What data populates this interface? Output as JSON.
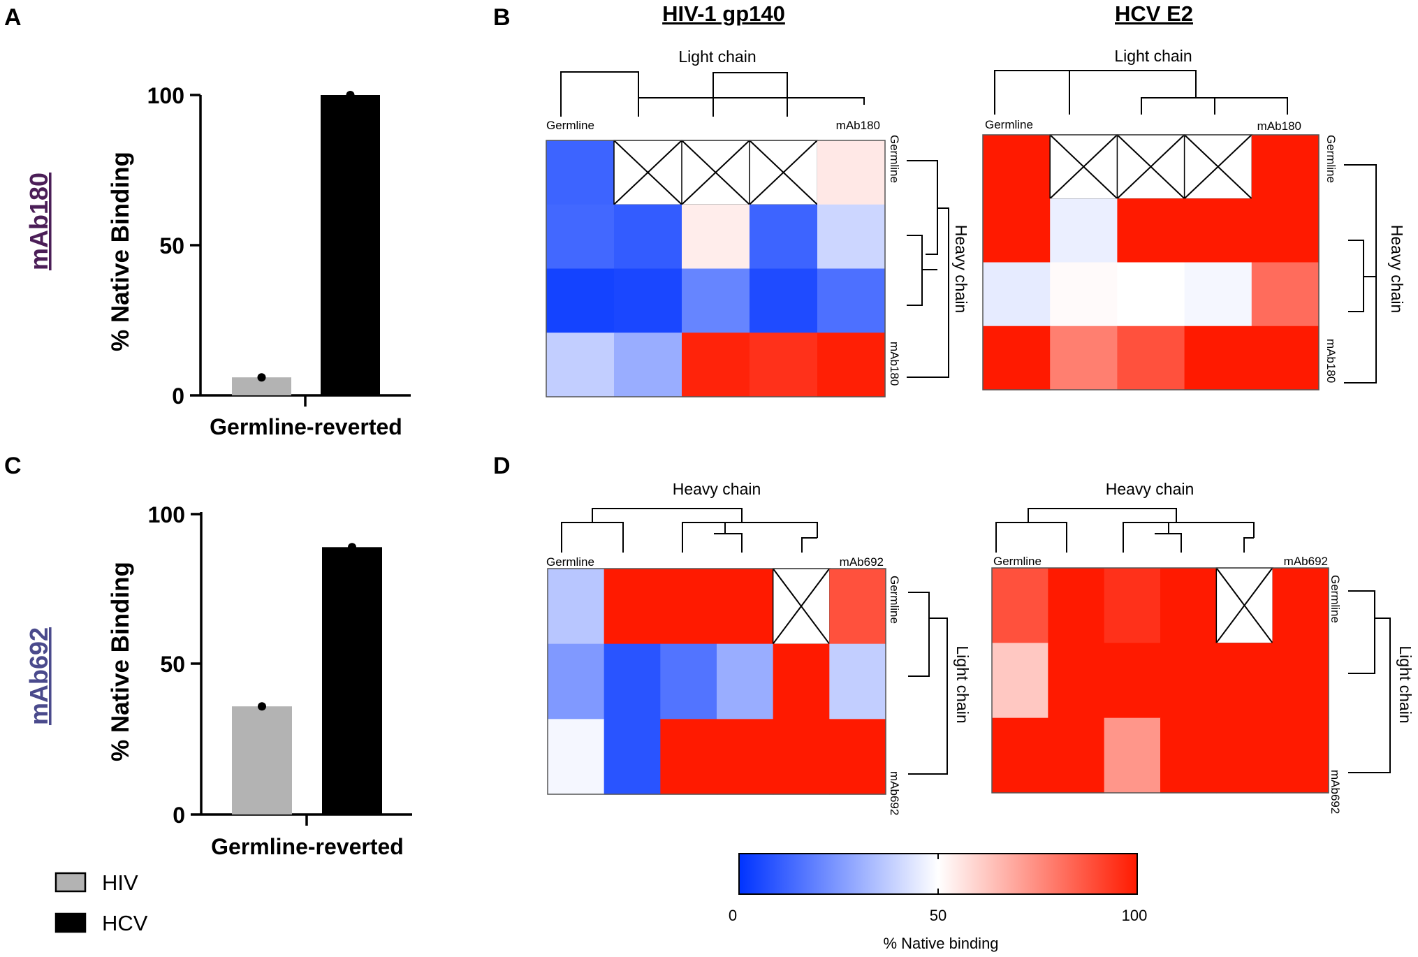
{
  "panels": {
    "A": "A",
    "B": "B",
    "C": "C",
    "D": "D"
  },
  "colors": {
    "hiv": "#b3b3b3",
    "hcv": "#000000",
    "low": "#0033ff",
    "mid": "#ffffff",
    "high": "#ff1a00",
    "mAb180_label": "#4b1e57",
    "mAb692_label": "#4a4a8c"
  },
  "chart_data": [
    {
      "id": "A",
      "type": "bar",
      "side_label": "mAb180",
      "ylabel": "% Native Binding",
      "xlabel": "Germline-reverted",
      "ylim": [
        0,
        100
      ],
      "yticks": [
        "0",
        "50",
        "100"
      ],
      "series": [
        {
          "name": "HIV",
          "values": [
            6
          ]
        },
        {
          "name": "HCV",
          "values": [
            100
          ]
        }
      ]
    },
    {
      "id": "C",
      "type": "bar",
      "side_label": "mAb692",
      "ylabel": "% Native Binding",
      "xlabel": "Germline-reverted",
      "ylim": [
        0,
        100
      ],
      "yticks": [
        "0",
        "50",
        "100"
      ],
      "series": [
        {
          "name": "HIV",
          "values": [
            36
          ]
        },
        {
          "name": "HCV",
          "values": [
            89
          ]
        }
      ]
    },
    {
      "id": "B-hiv",
      "type": "heatmap",
      "title": "HIV-1 gp140",
      "top_dendrogram_label": "Light chain",
      "side_dendrogram_label": "Heavy chain",
      "col_labels": [
        "Germline",
        "mAb180"
      ],
      "row_labels": [
        "Germline",
        "mAb180"
      ],
      "values": [
        [
          12,
          null,
          null,
          null,
          55
        ],
        [
          13,
          10,
          54,
          12,
          40
        ],
        [
          4,
          5,
          20,
          6,
          15
        ],
        [
          38,
          30,
          98,
          95,
          99
        ]
      ]
    },
    {
      "id": "B-hcv",
      "type": "heatmap",
      "title": "HCV E2",
      "top_dendrogram_label": "Light chain",
      "side_dendrogram_label": "Heavy chain",
      "col_labels": [
        "Germline",
        "mAb180"
      ],
      "row_labels": [
        "Germline",
        "mAb180"
      ],
      "values": [
        [
          100,
          null,
          null,
          null,
          100
        ],
        [
          100,
          46,
          100,
          100,
          100
        ],
        [
          45,
          51,
          50,
          48,
          82
        ],
        [
          100,
          78,
          88,
          100,
          100
        ]
      ]
    },
    {
      "id": "D-hiv",
      "type": "heatmap",
      "top_dendrogram_label": "Heavy chain",
      "side_dendrogram_label": "Light chain",
      "col_labels": [
        "Germline",
        "mAb692"
      ],
      "row_labels": [
        "Germline",
        "mAb692"
      ],
      "values": [
        [
          36,
          100,
          100,
          100,
          null,
          88
        ],
        [
          25,
          8,
          16,
          30,
          100,
          38
        ],
        [
          48,
          8,
          100,
          100,
          100,
          100
        ]
      ]
    },
    {
      "id": "D-hcv",
      "type": "heatmap",
      "top_dendrogram_label": "Heavy chain",
      "side_dendrogram_label": "Light chain",
      "col_labels": [
        "Germline",
        "mAb692"
      ],
      "row_labels": [
        "Germline",
        "mAb692"
      ],
      "values": [
        [
          88,
          100,
          95,
          100,
          null,
          100
        ],
        [
          62,
          100,
          100,
          100,
          100,
          100
        ],
        [
          100,
          100,
          73,
          100,
          100,
          100
        ]
      ]
    }
  ],
  "legend": {
    "hiv": "HIV",
    "hcv": "HCV"
  },
  "colorbar": {
    "label": "% Native binding",
    "ticks": [
      "0",
      "50",
      "100"
    ]
  }
}
